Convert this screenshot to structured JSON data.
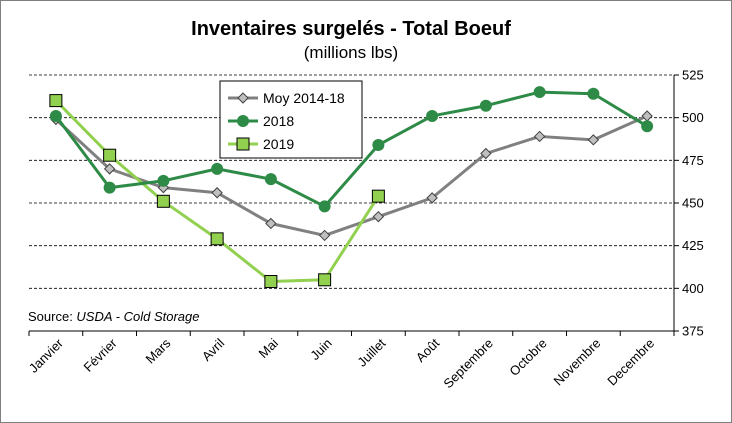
{
  "chart_data": {
    "type": "line",
    "title": "Inventaires surgelés - Total Boeuf",
    "subtitle": "(millions lbs)",
    "categories": [
      "Janvier",
      "Février",
      "Mars",
      "Avril",
      "Mai",
      "Juin",
      "Juillet",
      "Août",
      "Septembre",
      "Octobre",
      "Novembre",
      "Decembre"
    ],
    "ylim": [
      375,
      525
    ],
    "yticks": [
      375,
      400,
      425,
      450,
      475,
      500,
      525
    ],
    "grid": true,
    "legend_position": "top-left",
    "series": [
      {
        "name": "Moy 2014-18",
        "color": "#808080",
        "marker": "diamond",
        "values": [
          499,
          470,
          459,
          456,
          438,
          431,
          442,
          453,
          479,
          489,
          487,
          501
        ]
      },
      {
        "name": "2018",
        "color": "#2e8b47",
        "marker": "circle",
        "values": [
          501,
          459,
          463,
          470,
          464,
          448,
          484,
          501,
          507,
          515,
          514,
          495
        ]
      },
      {
        "name": "2019",
        "color": "#92d050",
        "marker": "square",
        "values": [
          510,
          478,
          451,
          429,
          404,
          405,
          454,
          null,
          null,
          null,
          null,
          null
        ]
      }
    ]
  },
  "source": {
    "prefix": "Source: ",
    "text": "USDA - Cold Storage"
  }
}
